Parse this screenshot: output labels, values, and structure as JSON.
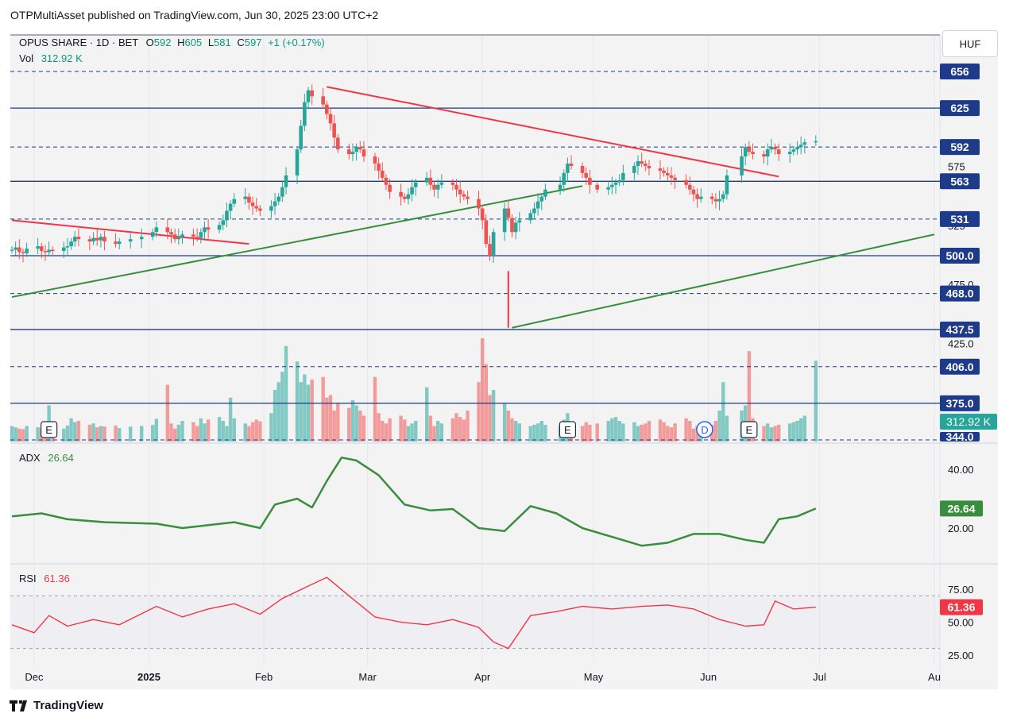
{
  "header": {
    "published": "OTPMultiAsset published on TradingView.com, Jun 30, 2025 23:00 UTC+2"
  },
  "legend": {
    "symbol": "OPUS SHARE · 1D · BET",
    "o_label": "O",
    "o": "592",
    "h_label": "H",
    "h": "605",
    "l_label": "L",
    "l": "581",
    "c_label": "C",
    "c": "597",
    "change": "+1 (+0.17%)",
    "vol_label": "Vol",
    "vol": "312.92 K",
    "adx_label": "ADX",
    "adx": "26.64",
    "rsi_label": "RSI",
    "rsi": "61.36"
  },
  "currency": "HUF",
  "brand": "TradingView",
  "colors": {
    "up": "#26a69a",
    "down": "#ef5350",
    "level": "#1e3a8a",
    "green_trend": "#388e3c",
    "red_trend": "#f23645",
    "adx": "#388e3c",
    "rsi": "#f23645"
  },
  "chart_data": [
    {
      "type": "candlestick",
      "x_range": [
        "2024-11-25",
        "2025-08-01"
      ],
      "x_ticks": [
        {
          "date": "2024-12-01",
          "label": "Dec"
        },
        {
          "date": "2025-01-01",
          "label": "2025"
        },
        {
          "date": "2025-02-01",
          "label": "Feb"
        },
        {
          "date": "2025-03-01",
          "label": "Mar"
        },
        {
          "date": "2025-04-01",
          "label": "Apr"
        },
        {
          "date": "2025-05-01",
          "label": "May"
        },
        {
          "date": "2025-06-01",
          "label": "Jun"
        },
        {
          "date": "2025-07-01",
          "label": "Jul"
        },
        {
          "date": "2025-08-01",
          "label": "Au"
        }
      ],
      "y_ticks": [
        {
          "value": 575,
          "label": "575"
        },
        {
          "value": 525,
          "label": "525"
        },
        {
          "value": 475,
          "label": "475.0"
        },
        {
          "value": 425,
          "label": "425.0"
        }
      ],
      "levels": [
        {
          "value": 656,
          "label": "656",
          "style": "dashed"
        },
        {
          "value": 625,
          "label": "625",
          "style": "solid"
        },
        {
          "value": 592,
          "label": "592",
          "style": "dashed"
        },
        {
          "value": 563,
          "label": "563",
          "style": "solid"
        },
        {
          "value": 531,
          "label": "531",
          "style": "dashed"
        },
        {
          "value": 500,
          "label": "500.0",
          "style": "solid"
        },
        {
          "value": 468,
          "label": "468.0",
          "style": "dashed"
        },
        {
          "value": 437.5,
          "label": "437.5",
          "style": "solid"
        },
        {
          "value": 406,
          "label": "406.0",
          "style": "dashed"
        },
        {
          "value": 375,
          "label": "375.0",
          "style": "solid"
        },
        {
          "value": 344,
          "label": "344.0",
          "style": "dashed"
        }
      ],
      "trendlines": [
        {
          "color": "red",
          "from": [
            "2024-11-25",
            530
          ],
          "to": [
            "2025-01-28",
            510
          ]
        },
        {
          "color": "red",
          "from": [
            "2025-02-18",
            643
          ],
          "to": [
            "2025-06-20",
            567
          ]
        },
        {
          "color": "green",
          "from": [
            "2024-11-25",
            465
          ],
          "to": [
            "2025-04-28",
            559
          ]
        },
        {
          "color": "green",
          "from": [
            "2025-04-09",
            439
          ],
          "to": [
            "2025-08-01",
            518
          ]
        },
        {
          "color": "red",
          "from": [
            "2025-04-08",
            487
          ],
          "to": [
            "2025-04-08",
            439
          ]
        }
      ],
      "events": [
        {
          "date": "2024-12-05",
          "label": "E"
        },
        {
          "date": "2025-04-24",
          "label": "E"
        },
        {
          "date": "2025-05-31",
          "label": "D"
        },
        {
          "date": "2025-06-12",
          "label": "E"
        }
      ],
      "ohlc": {
        "start": "2024-11-25",
        "dates": [
          "2024-11-25",
          "2024-11-26",
          "2024-11-27",
          "2024-11-28",
          "2024-11-29",
          "2024-12-02",
          "2024-12-03",
          "2024-12-04",
          "2024-12-05",
          "2024-12-06",
          "2024-12-09",
          "2024-12-10",
          "2024-12-11",
          "2024-12-12",
          "2024-12-13",
          "2024-12-16",
          "2024-12-17",
          "2024-12-18",
          "2024-12-19",
          "2024-12-20",
          "2024-12-23",
          "2024-12-24",
          "2024-12-27",
          "2024-12-30",
          "2025-01-02",
          "2025-01-03",
          "2025-01-06",
          "2025-01-07",
          "2025-01-08",
          "2025-01-09",
          "2025-01-10",
          "2025-01-13",
          "2025-01-14",
          "2025-01-15",
          "2025-01-16",
          "2025-01-17",
          "2025-01-20",
          "2025-01-21",
          "2025-01-22",
          "2025-01-23",
          "2025-01-24",
          "2025-01-27",
          "2025-01-28",
          "2025-01-29",
          "2025-01-30",
          "2025-01-31",
          "2025-02-03",
          "2025-02-04",
          "2025-02-05",
          "2025-02-06",
          "2025-02-07",
          "2025-02-10",
          "2025-02-11",
          "2025-02-12",
          "2025-02-13",
          "2025-02-14",
          "2025-02-17",
          "2025-02-18",
          "2025-02-19",
          "2025-02-20",
          "2025-02-21",
          "2025-02-24",
          "2025-02-25",
          "2025-02-26",
          "2025-02-27",
          "2025-02-28",
          "2025-03-03",
          "2025-03-04",
          "2025-03-05",
          "2025-03-06",
          "2025-03-07",
          "2025-03-10",
          "2025-03-11",
          "2025-03-12",
          "2025-03-13",
          "2025-03-14",
          "2025-03-17",
          "2025-03-18",
          "2025-03-19",
          "2025-03-20",
          "2025-03-21",
          "2025-03-24",
          "2025-03-25",
          "2025-03-26",
          "2025-03-27",
          "2025-03-28",
          "2025-03-31",
          "2025-04-01",
          "2025-04-02",
          "2025-04-03",
          "2025-04-04",
          "2025-04-07",
          "2025-04-08",
          "2025-04-09",
          "2025-04-10",
          "2025-04-11",
          "2025-04-14",
          "2025-04-15",
          "2025-04-16",
          "2025-04-17",
          "2025-04-18",
          "2025-04-22",
          "2025-04-23",
          "2025-04-24",
          "2025-04-25",
          "2025-04-28",
          "2025-04-29",
          "2025-04-30",
          "2025-05-02",
          "2025-05-05",
          "2025-05-06",
          "2025-05-07",
          "2025-05-08",
          "2025-05-09",
          "2025-05-12",
          "2025-05-13",
          "2025-05-14",
          "2025-05-15",
          "2025-05-16",
          "2025-05-19",
          "2025-05-20",
          "2025-05-21",
          "2025-05-22",
          "2025-05-23",
          "2025-05-26",
          "2025-05-27",
          "2025-05-28",
          "2025-05-29",
          "2025-05-30",
          "2025-06-02",
          "2025-06-03",
          "2025-06-04",
          "2025-06-05",
          "2025-06-06",
          "2025-06-10",
          "2025-06-11",
          "2025-06-12",
          "2025-06-13",
          "2025-06-16",
          "2025-06-17",
          "2025-06-18",
          "2025-06-19",
          "2025-06-20",
          "2025-06-23",
          "2025-06-24",
          "2025-06-25",
          "2025-06-26",
          "2025-06-27",
          "2025-06-30"
        ],
        "close": [
          505,
          507,
          503,
          502,
          506,
          508,
          504,
          503,
          505,
          504,
          507,
          508,
          512,
          516,
          514,
          512,
          515,
          513,
          516,
          512,
          510,
          512,
          514,
          516,
          520,
          524,
          520,
          518,
          514,
          516,
          518,
          516,
          515,
          520,
          524,
          522,
          526,
          530,
          538,
          544,
          548,
          550,
          545,
          542,
          540,
          538,
          542,
          546,
          550,
          558,
          568,
          590,
          610,
          630,
          640,
          635,
          628,
          620,
          612,
          600,
          590,
          586,
          588,
          592,
          590,
          584,
          578,
          572,
          566,
          560,
          554,
          550,
          548,
          552,
          558,
          562,
          566,
          560,
          556,
          560,
          562,
          560,
          556,
          552,
          550,
          548,
          540,
          530,
          510,
          500,
          520,
          540,
          532,
          520,
          528,
          530,
          536,
          540,
          546,
          550,
          556,
          560,
          570,
          578,
          576,
          570,
          566,
          560,
          556,
          558,
          560,
          562,
          564,
          570,
          576,
          580,
          578,
          576,
          574,
          572,
          570,
          568,
          566,
          564,
          560,
          556,
          552,
          548,
          550,
          548,
          546,
          548,
          552,
          568,
          584,
          592,
          588,
          586,
          584,
          590,
          592,
          590,
          586,
          588,
          590,
          592,
          594,
          596,
          597
        ],
        "volume_k": [
          60,
          55,
          50,
          48,
          60,
          55,
          52,
          50,
          140,
          58,
          50,
          62,
          90,
          75,
          80,
          65,
          70,
          55,
          60,
          58,
          62,
          52,
          58,
          60,
          64,
          88,
          220,
          70,
          50,
          65,
          80,
          75,
          60,
          90,
          70,
          85,
          95,
          80,
          60,
          170,
          90,
          70,
          60,
          75,
          85,
          78,
          110,
          200,
          230,
          270,
          370,
          310,
          230,
          260,
          220,
          240,
          250,
          170,
          180,
          120,
          150,
          130,
          160,
          140,
          120,
          100,
          250,
          110,
          80,
          70,
          90,
          100,
          85,
          60,
          70,
          80,
          210,
          100,
          60,
          80,
          70,
          90,
          110,
          95,
          85,
          120,
          230,
          400,
          300,
          180,
          200,
          150,
          120,
          90,
          80,
          70,
          60,
          65,
          70,
          80,
          65,
          60,
          85,
          110,
          70,
          60,
          75,
          65,
          70,
          80,
          90,
          95,
          80,
          70,
          75,
          60,
          65,
          70,
          80,
          85,
          75,
          60,
          55,
          70,
          90,
          80,
          50,
          60,
          70,
          65,
          80,
          120,
          230,
          100,
          120,
          140,
          350,
          90,
          60,
          70,
          55,
          60,
          65,
          70,
          75,
          80,
          90,
          100,
          312.92
        ]
      }
    },
    {
      "type": "line",
      "name": "ADX",
      "y_ticks": [
        {
          "value": 40,
          "label": "40.00"
        },
        {
          "value": 20,
          "label": "20.00"
        }
      ],
      "value_label": "26.64",
      "points": [
        [
          "2024-11-25",
          24
        ],
        [
          "2024-12-03",
          25
        ],
        [
          "2024-12-10",
          23
        ],
        [
          "2024-12-20",
          22
        ],
        [
          "2025-01-03",
          21.5
        ],
        [
          "2025-01-10",
          20
        ],
        [
          "2025-01-17",
          21
        ],
        [
          "2025-01-24",
          22
        ],
        [
          "2025-01-31",
          20
        ],
        [
          "2025-02-04",
          28
        ],
        [
          "2025-02-10",
          30
        ],
        [
          "2025-02-14",
          27
        ],
        [
          "2025-02-18",
          36
        ],
        [
          "2025-02-22",
          44
        ],
        [
          "2025-02-26",
          43
        ],
        [
          "2025-03-04",
          38
        ],
        [
          "2025-03-11",
          28
        ],
        [
          "2025-03-18",
          26
        ],
        [
          "2025-03-24",
          26.5
        ],
        [
          "2025-03-31",
          20
        ],
        [
          "2025-04-07",
          19
        ],
        [
          "2025-04-14",
          27.5
        ],
        [
          "2025-04-21",
          25
        ],
        [
          "2025-04-28",
          20
        ],
        [
          "2025-05-06",
          17
        ],
        [
          "2025-05-14",
          14
        ],
        [
          "2025-05-21",
          15
        ],
        [
          "2025-05-28",
          18
        ],
        [
          "2025-06-04",
          18
        ],
        [
          "2025-06-11",
          16
        ],
        [
          "2025-06-16",
          15
        ],
        [
          "2025-06-20",
          23
        ],
        [
          "2025-06-25",
          24
        ],
        [
          "2025-06-30",
          26.64
        ]
      ]
    },
    {
      "type": "line",
      "name": "RSI",
      "y_ticks": [
        {
          "value": 75,
          "label": "75.00"
        },
        {
          "value": 50,
          "label": "50.00"
        },
        {
          "value": 25,
          "label": "25.00"
        }
      ],
      "value_label": "61.36",
      "points": [
        [
          "2024-11-25",
          48
        ],
        [
          "2024-12-01",
          42
        ],
        [
          "2024-12-05",
          55
        ],
        [
          "2024-12-10",
          47
        ],
        [
          "2024-12-17",
          52
        ],
        [
          "2024-12-24",
          48
        ],
        [
          "2025-01-03",
          62
        ],
        [
          "2025-01-10",
          54
        ],
        [
          "2025-01-17",
          60
        ],
        [
          "2025-01-24",
          64
        ],
        [
          "2025-01-31",
          56
        ],
        [
          "2025-02-06",
          68
        ],
        [
          "2025-02-12",
          76
        ],
        [
          "2025-02-18",
          84
        ],
        [
          "2025-02-24",
          70
        ],
        [
          "2025-03-03",
          54
        ],
        [
          "2025-03-10",
          50
        ],
        [
          "2025-03-17",
          48
        ],
        [
          "2025-03-24",
          52
        ],
        [
          "2025-03-31",
          46
        ],
        [
          "2025-04-04",
          35
        ],
        [
          "2025-04-08",
          30
        ],
        [
          "2025-04-14",
          55
        ],
        [
          "2025-04-21",
          58
        ],
        [
          "2025-04-28",
          62
        ],
        [
          "2025-05-06",
          60
        ],
        [
          "2025-05-14",
          62
        ],
        [
          "2025-05-21",
          63
        ],
        [
          "2025-05-28",
          60
        ],
        [
          "2025-06-04",
          52
        ],
        [
          "2025-06-11",
          47
        ],
        [
          "2025-06-16",
          48
        ],
        [
          "2025-06-19",
          66
        ],
        [
          "2025-06-24",
          60
        ],
        [
          "2025-06-30",
          61.36
        ]
      ]
    }
  ]
}
